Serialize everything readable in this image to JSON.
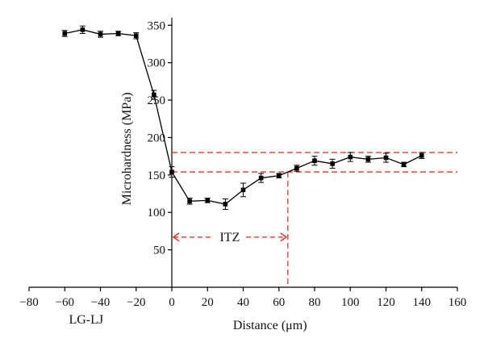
{
  "chart_data": {
    "type": "line",
    "xlabel": "Distance (μm)",
    "ylabel": "Microhardness (MPa)",
    "xlim": [
      -80,
      160
    ],
    "ylim": [
      0,
      360
    ],
    "x_ticks": [
      -80,
      -60,
      -40,
      -20,
      0,
      20,
      40,
      60,
      80,
      100,
      120,
      140,
      160
    ],
    "y_ticks": [
      50,
      100,
      150,
      200,
      250,
      300,
      350
    ],
    "y_axis_at_x": 0,
    "series": [
      {
        "color": "#000000",
        "marker": "square",
        "points": [
          {
            "x": -60,
            "y": 339,
            "err": 4
          },
          {
            "x": -50,
            "y": 344,
            "err": 5
          },
          {
            "x": -40,
            "y": 338,
            "err": 4
          },
          {
            "x": -30,
            "y": 339,
            "err": 3
          },
          {
            "x": -20,
            "y": 336,
            "err": 4
          },
          {
            "x": -10,
            "y": 257,
            "err": 6
          },
          {
            "x": 0,
            "y": 154,
            "err": 7
          },
          {
            "x": 10,
            "y": 115,
            "err": 4
          },
          {
            "x": 20,
            "y": 116,
            "err": 3
          },
          {
            "x": 30,
            "y": 111,
            "err": 7
          },
          {
            "x": 40,
            "y": 130,
            "err": 9
          },
          {
            "x": 50,
            "y": 146,
            "err": 6
          },
          {
            "x": 60,
            "y": 149,
            "err": 3
          },
          {
            "x": 70,
            "y": 159,
            "err": 4
          },
          {
            "x": 80,
            "y": 169,
            "err": 6
          },
          {
            "x": 90,
            "y": 165,
            "err": 6
          },
          {
            "x": 100,
            "y": 174,
            "err": 6
          },
          {
            "x": 110,
            "y": 171,
            "err": 4
          },
          {
            "x": 120,
            "y": 173,
            "err": 6
          },
          {
            "x": 130,
            "y": 164,
            "err": 3
          },
          {
            "x": 140,
            "y": 176,
            "err": 4
          }
        ]
      }
    ],
    "reference_lines": {
      "color": "#e8231f",
      "horizontal": [
        180,
        154
      ],
      "vertical": [
        65
      ]
    },
    "annotations": [
      {
        "text": "ITZ",
        "x_range": [
          0,
          65
        ],
        "y": 67
      },
      {
        "text": "LG-LJ",
        "x": -48,
        "y": -45
      }
    ],
    "grid": false
  }
}
